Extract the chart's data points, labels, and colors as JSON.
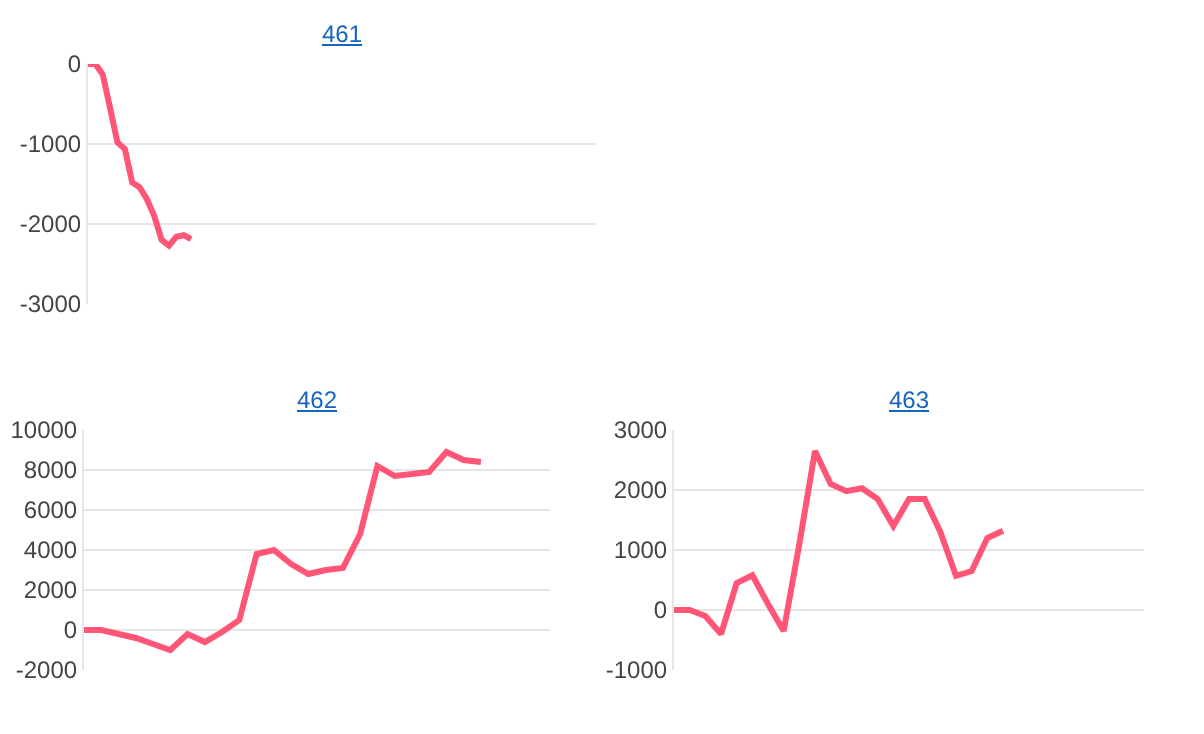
{
  "chart_data": [
    {
      "type": "line",
      "title": "461",
      "categories": [
        null,
        null,
        null,
        null,
        null,
        null,
        null,
        null,
        null,
        null,
        null,
        null,
        null,
        null,
        null,
        null,
        null,
        null,
        null,
        null,
        null,
        null,
        null,
        null,
        null,
        null,
        null,
        null,
        null,
        null,
        null,
        null,
        null,
        null,
        null,
        null,
        null,
        null,
        null,
        null,
        null,
        null,
        null,
        null,
        null,
        null,
        null,
        null,
        null,
        null,
        null,
        null,
        null,
        null,
        null,
        null,
        null,
        null,
        null,
        null,
        null,
        null,
        null,
        null,
        null,
        null,
        null,
        null,
        null,
        null
      ],
      "series": [
        {
          "color": "#ff5577",
          "values": [
            0,
            0,
            -130,
            -550,
            -980,
            -1060,
            -1480,
            -1540,
            -1690,
            -1900,
            -2200,
            -2270,
            -2160,
            -2140,
            -2190,
            null,
            null,
            null,
            null,
            null,
            null,
            null,
            null,
            null,
            null,
            null,
            null,
            null,
            null,
            null,
            null,
            null,
            null,
            null,
            null,
            null,
            null,
            null,
            null,
            null,
            null,
            null,
            null,
            null,
            null,
            null,
            null,
            null,
            null,
            null,
            null,
            null,
            null,
            null,
            null,
            null,
            null,
            null,
            null,
            null,
            null,
            null,
            null,
            null,
            null,
            null,
            null,
            null,
            null,
            null
          ]
        }
      ],
      "ylim": [
        -3000,
        0
      ],
      "yticks": [
        -3000,
        -2000,
        -1000,
        0
      ],
      "grid": "y",
      "tick_labels": "y",
      "marker": "none"
    },
    {
      "type": "line",
      "title": "462",
      "categories": [
        null,
        null,
        null,
        null,
        null,
        null,
        null,
        null,
        null,
        null,
        null,
        null,
        null,
        null,
        null,
        null,
        null,
        null,
        null,
        null,
        null,
        null,
        null,
        null,
        null,
        null,
        null,
        null
      ],
      "series": [
        {
          "color": "#ff5577",
          "values": [
            0,
            0,
            -200,
            -400,
            -700,
            -1000,
            -200,
            -600,
            -100,
            500,
            3800,
            4000,
            3300,
            2800,
            3000,
            3100,
            4800,
            8200,
            7700,
            7800,
            7900,
            8900,
            8500,
            8400,
            null,
            null,
            null,
            null
          ]
        }
      ],
      "ylim": [
        -2000,
        10000
      ],
      "yticks": [
        -2000,
        0,
        2000,
        4000,
        6000,
        8000,
        10000
      ],
      "grid": "y",
      "tick_labels": "y",
      "marker": "none"
    },
    {
      "type": "line",
      "title": "463",
      "categories": [
        null,
        null,
        null,
        null,
        null,
        null,
        null,
        null,
        null,
        null,
        null,
        null,
        null,
        null,
        null,
        null,
        null,
        null,
        null,
        null,
        null,
        null,
        null,
        null,
        null,
        null,
        null,
        null,
        null,
        null,
        null
      ],
      "series": [
        {
          "color": "#ff5577",
          "values": [
            0,
            0,
            -100,
            -400,
            450,
            580,
            100,
            -350,
            1100,
            2650,
            2100,
            1980,
            2030,
            1850,
            1400,
            1850,
            1850,
            1300,
            570,
            650,
            1200,
            1320,
            null,
            null,
            null,
            null,
            null,
            null,
            null,
            null,
            null
          ]
        }
      ],
      "ylim": [
        -1000,
        3000
      ],
      "yticks": [
        -1000,
        0,
        1000,
        2000,
        3000
      ],
      "grid": "y",
      "tick_labels": "y",
      "marker": "none"
    }
  ]
}
